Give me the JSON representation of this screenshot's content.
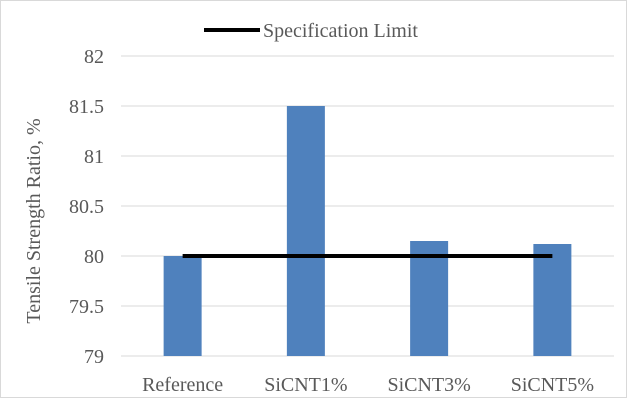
{
  "chart_data": {
    "type": "bar",
    "categories": [
      "Reference",
      "SiCNT1%",
      "SiCNT3%",
      "SiCNT5%"
    ],
    "series": [
      {
        "values": [
          80.0,
          81.5,
          80.15,
          80.12
        ],
        "color": "#4f81bd"
      }
    ],
    "reference_line": {
      "name": "Specification Limit",
      "value": 80,
      "color": "#000000"
    },
    "title": "",
    "xlabel": "",
    "ylabel": "Tensile Strength Ratio, %",
    "ylim": [
      79,
      82
    ],
    "yticks": [
      "79",
      "79.5",
      "80",
      "80.5",
      "81",
      "81.5",
      "82"
    ],
    "grid": true,
    "legend_position": "top"
  }
}
